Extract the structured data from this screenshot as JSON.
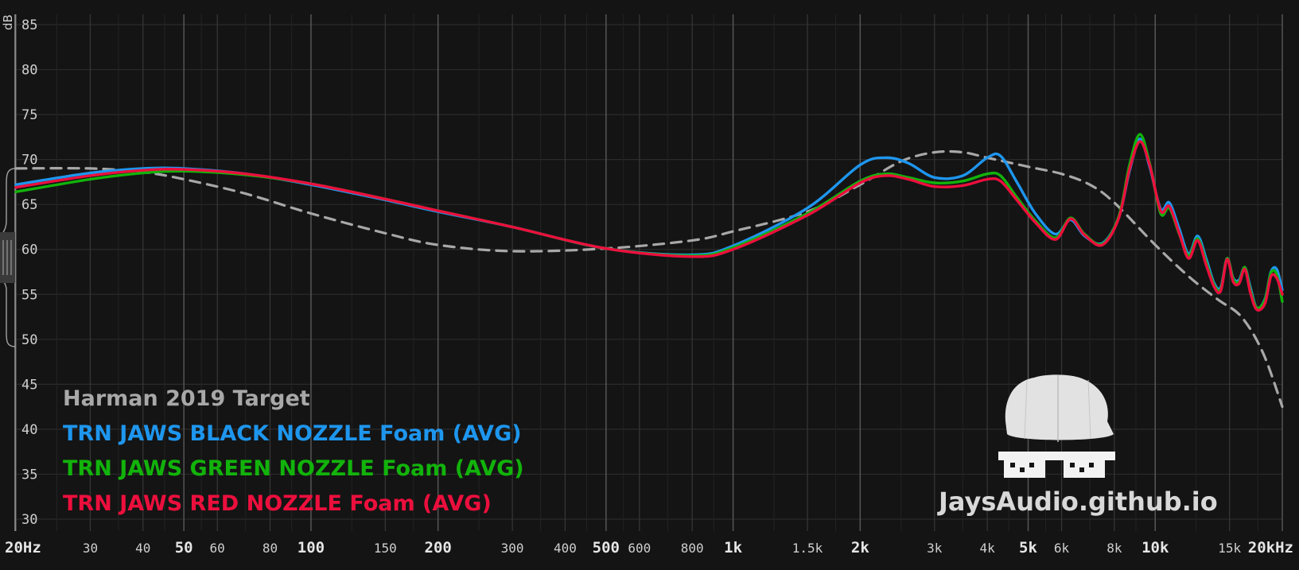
{
  "chart_data": {
    "type": "line",
    "ylabel": "dB",
    "ylim": [
      30,
      85
    ],
    "xlim": [
      20,
      20000
    ],
    "x_scale": "log",
    "grid": true,
    "legend_position": "bottom-left",
    "y_ticks": [
      "30",
      "35",
      "40",
      "45",
      "50",
      "55",
      "60",
      "65",
      "70",
      "75",
      "80",
      "85"
    ],
    "x_ticks": [
      {
        "label": "20Hz",
        "value": 20,
        "major": true
      },
      {
        "label": "30",
        "value": 30,
        "major": false
      },
      {
        "label": "40",
        "value": 40,
        "major": false
      },
      {
        "label": "50",
        "value": 50,
        "major": true
      },
      {
        "label": "60",
        "value": 60,
        "major": false
      },
      {
        "label": "80",
        "value": 80,
        "major": false
      },
      {
        "label": "100",
        "value": 100,
        "major": true
      },
      {
        "label": "150",
        "value": 150,
        "major": false
      },
      {
        "label": "200",
        "value": 200,
        "major": true
      },
      {
        "label": "300",
        "value": 300,
        "major": false
      },
      {
        "label": "400",
        "value": 400,
        "major": false
      },
      {
        "label": "500",
        "value": 500,
        "major": true
      },
      {
        "label": "600",
        "value": 600,
        "major": false
      },
      {
        "label": "800",
        "value": 800,
        "major": false
      },
      {
        "label": "1k",
        "value": 1000,
        "major": true
      },
      {
        "label": "1.5k",
        "value": 1500,
        "major": false
      },
      {
        "label": "2k",
        "value": 2000,
        "major": true
      },
      {
        "label": "3k",
        "value": 3000,
        "major": false
      },
      {
        "label": "4k",
        "value": 4000,
        "major": false
      },
      {
        "label": "5k",
        "value": 5000,
        "major": true
      },
      {
        "label": "6k",
        "value": 6000,
        "major": false
      },
      {
        "label": "8k",
        "value": 8000,
        "major": false
      },
      {
        "label": "10k",
        "value": 10000,
        "major": true
      },
      {
        "label": "15k",
        "value": 15000,
        "major": false
      },
      {
        "label": "20kHz",
        "value": 20000,
        "major": true
      }
    ],
    "series": [
      {
        "name": "Harman 2019 Target",
        "color": "#a8a8a8",
        "dashed": true,
        "x": [
          20,
          30,
          40,
          50,
          70,
          100,
          150,
          200,
          300,
          500,
          800,
          1000,
          1500,
          2000,
          2500,
          3000,
          3500,
          4000,
          5000,
          6000,
          7000,
          8000,
          10000,
          12000,
          14000,
          16000,
          18000,
          20000
        ],
        "y": [
          69.0,
          69.0,
          68.6,
          67.8,
          66.2,
          64.0,
          61.8,
          60.5,
          59.8,
          60.1,
          61.0,
          62.0,
          64.2,
          67.2,
          69.8,
          70.8,
          70.8,
          70.2,
          69.2,
          68.4,
          67.2,
          65.2,
          60.5,
          57.0,
          54.5,
          52.5,
          48.5,
          42.5
        ]
      },
      {
        "name": "TRN JAWS BLACK NOZZLE Foam (AVG)",
        "color": "#1e96ee",
        "dashed": false,
        "x": [
          20,
          30,
          40,
          50,
          70,
          100,
          150,
          200,
          300,
          500,
          800,
          1000,
          1500,
          2000,
          2300,
          2600,
          3000,
          3500,
          4000,
          4300,
          4700,
          5200,
          5800,
          6300,
          6800,
          7500,
          8200,
          8700,
          9200,
          9700,
          10300,
          10800,
          11400,
          12000,
          12600,
          13200,
          13800,
          14300,
          14800,
          15300,
          15800,
          16300,
          16800,
          17400,
          18200,
          18800,
          19400,
          20000
        ],
        "y": [
          67.2,
          68.5,
          69.0,
          69.0,
          68.4,
          67.2,
          65.5,
          64.2,
          62.5,
          60.1,
          59.4,
          60.4,
          64.6,
          69.4,
          70.2,
          69.6,
          68.0,
          68.2,
          70.2,
          70.4,
          67.5,
          64.0,
          61.7,
          63.3,
          61.5,
          60.7,
          63.6,
          68.8,
          72.3,
          69.2,
          64.5,
          65.2,
          62.3,
          59.5,
          61.5,
          59.0,
          56.2,
          55.8,
          59.0,
          56.8,
          56.6,
          58.0,
          55.8,
          53.5,
          54.5,
          57.5,
          57.8,
          55.5
        ]
      },
      {
        "name": "TRN JAWS GREEN NOZZLE Foam (AVG)",
        "color": "#12b30b",
        "dashed": false,
        "x": [
          20,
          30,
          40,
          50,
          70,
          100,
          150,
          200,
          300,
          500,
          800,
          1000,
          1500,
          2000,
          2300,
          2600,
          3000,
          3500,
          4000,
          4300,
          4700,
          5200,
          5800,
          6300,
          6800,
          7500,
          8200,
          8700,
          9200,
          9700,
          10300,
          10800,
          11400,
          12000,
          12600,
          13200,
          13800,
          14300,
          14800,
          15300,
          15800,
          16300,
          16800,
          17400,
          18200,
          18800,
          19400,
          20000
        ],
        "y": [
          66.4,
          67.8,
          68.5,
          68.7,
          68.3,
          67.3,
          65.6,
          64.3,
          62.5,
          60.1,
          59.3,
          60.2,
          64.0,
          67.6,
          68.4,
          68.0,
          67.4,
          67.6,
          68.4,
          68.2,
          65.8,
          63.2,
          61.3,
          63.5,
          61.7,
          60.6,
          63.7,
          69.5,
          72.8,
          69.6,
          64.0,
          64.6,
          61.7,
          59.3,
          61.2,
          58.6,
          56.0,
          55.6,
          59.0,
          56.7,
          56.4,
          58.0,
          55.5,
          53.5,
          54.4,
          57.4,
          57.2,
          54.2
        ]
      },
      {
        "name": "TRN JAWS RED NOZZLE Foam (AVG)",
        "color": "#ec0f3d",
        "dashed": false,
        "x": [
          20,
          30,
          40,
          50,
          70,
          100,
          150,
          200,
          300,
          500,
          800,
          1000,
          1500,
          2000,
          2300,
          2600,
          3000,
          3500,
          4000,
          4300,
          4700,
          5200,
          5800,
          6300,
          6800,
          7500,
          8200,
          8700,
          9200,
          9700,
          10300,
          10800,
          11400,
          12000,
          12600,
          13200,
          13800,
          14300,
          14800,
          15300,
          15800,
          16300,
          16800,
          17400,
          18200,
          18800,
          19400,
          20000
        ],
        "y": [
          66.9,
          68.2,
          68.8,
          68.9,
          68.4,
          67.3,
          65.6,
          64.3,
          62.5,
          60.1,
          59.2,
          60.0,
          63.8,
          67.4,
          68.2,
          67.8,
          67.0,
          67.1,
          67.8,
          67.6,
          65.5,
          63.0,
          61.1,
          63.4,
          61.6,
          60.5,
          63.5,
          69.0,
          72.0,
          69.4,
          64.3,
          64.8,
          61.8,
          59.0,
          61.0,
          58.3,
          55.8,
          55.4,
          58.9,
          56.4,
          56.2,
          57.8,
          55.2,
          53.3,
          54.0,
          57.0,
          56.8,
          55.0
        ]
      }
    ]
  },
  "watermark": {
    "text": "JaysAudio.github.io"
  }
}
